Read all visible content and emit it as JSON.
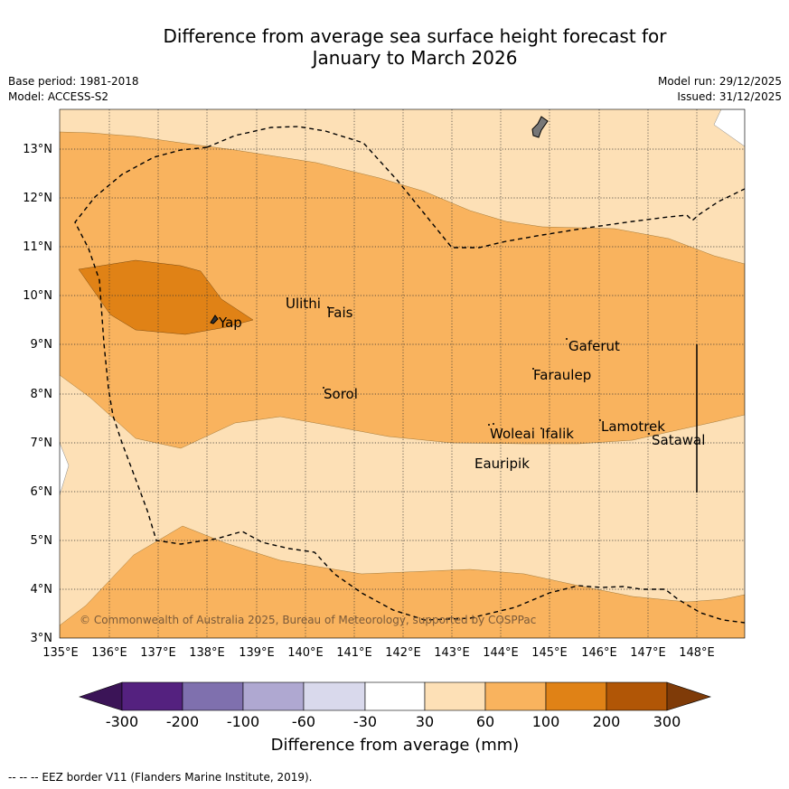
{
  "title": {
    "line1": "Difference from average sea surface height forecast for",
    "line2": "January to March 2026"
  },
  "meta": {
    "base_period": "Base period: 1981-2018",
    "model": "Model: ACCESS-S2",
    "model_run": "Model run: 29/12/2025",
    "issued": "Issued: 31/12/2025"
  },
  "axes": {
    "x_ticks": [
      "135°E",
      "136°E",
      "137°E",
      "138°E",
      "139°E",
      "140°E",
      "141°E",
      "142°E",
      "143°E",
      "144°E",
      "145°E",
      "146°E",
      "147°E",
      "148°E"
    ],
    "y_ticks": [
      "3°N",
      "4°N",
      "5°N",
      "6°N",
      "7°N",
      "8°N",
      "9°N",
      "10°N",
      "11°N",
      "12°N",
      "13°N"
    ]
  },
  "places": {
    "yap": "Yap",
    "ulithi": "Ulithi",
    "fais": "Fais",
    "gaferut": "Gaferut",
    "faraulep": "Faraulep",
    "sorol": "Sorol",
    "woleai": "Woleai",
    "ifalik": "Ifalik",
    "lamotrek": "Lamotrek",
    "satawal": "Satawal",
    "eauripik": "Eauripik"
  },
  "copyright": "© Commonwealth of Australia 2025, Bureau of Meteorology, supported by COSPPac",
  "colorbar": {
    "label": "Difference from average (mm)",
    "ticks": [
      "-300",
      "-200",
      "-100",
      "-60",
      "-30",
      "30",
      "60",
      "100",
      "200",
      "300"
    ],
    "colors": [
      "#3b1457",
      "#54217f",
      "#7f70ae",
      "#afa8d1",
      "#d9d9ec",
      "#ffffff",
      "#fde0b6",
      "#f9b35e",
      "#e08216",
      "#b15606",
      "#7f3b08"
    ]
  },
  "footer": "-- -- -- EEZ border V11 (Flanders Marine Institute, 2019)."
}
